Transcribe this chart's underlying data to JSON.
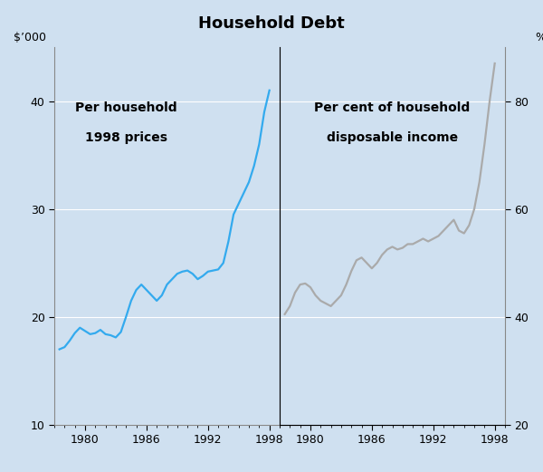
{
  "title": "Household Debt",
  "background_color": "#cfe0f0",
  "plot_bg_color": "#cfe0f0",
  "left_ylabel": "$’000",
  "right_ylabel": "%",
  "left_label1": "Per household",
  "left_label2": "1998 prices",
  "right_label1": "Per cent of household",
  "right_label2": "disposable income",
  "left_ylim": [
    10,
    45
  ],
  "right_ylim": [
    20,
    90
  ],
  "left_yticks": [
    10,
    20,
    30,
    40
  ],
  "right_yticks": [
    20,
    40,
    60,
    80
  ],
  "left_xticks": [
    1980,
    1986,
    1992,
    1998
  ],
  "right_xticks": [
    1980,
    1986,
    1992,
    1998
  ],
  "left_color": "#33aaee",
  "right_color": "#aaaaaa",
  "left_x": [
    1977.5,
    1978.0,
    1978.5,
    1979.0,
    1979.5,
    1980.0,
    1980.5,
    1981.0,
    1981.5,
    1982.0,
    1982.5,
    1983.0,
    1983.5,
    1984.0,
    1984.5,
    1985.0,
    1985.5,
    1986.0,
    1986.5,
    1987.0,
    1987.5,
    1988.0,
    1988.5,
    1989.0,
    1989.5,
    1990.0,
    1990.5,
    1991.0,
    1991.5,
    1992.0,
    1992.5,
    1993.0,
    1993.5,
    1994.0,
    1994.5,
    1995.0,
    1995.5,
    1996.0,
    1996.5,
    1997.0,
    1997.5,
    1998.0
  ],
  "left_y": [
    17.0,
    17.2,
    17.8,
    18.5,
    19.0,
    18.7,
    18.4,
    18.5,
    18.8,
    18.4,
    18.3,
    18.1,
    18.6,
    20.0,
    21.5,
    22.5,
    23.0,
    22.5,
    22.0,
    21.5,
    22.0,
    23.0,
    23.5,
    24.0,
    24.2,
    24.3,
    24.0,
    23.5,
    23.8,
    24.2,
    24.3,
    24.4,
    25.0,
    27.0,
    29.5,
    30.5,
    31.5,
    32.5,
    34.0,
    36.0,
    39.0,
    41.0
  ],
  "right_x": [
    1977.5,
    1978.0,
    1978.5,
    1979.0,
    1979.5,
    1980.0,
    1980.5,
    1981.0,
    1981.5,
    1982.0,
    1982.5,
    1983.0,
    1983.5,
    1984.0,
    1984.5,
    1985.0,
    1985.5,
    1986.0,
    1986.5,
    1987.0,
    1987.5,
    1988.0,
    1988.5,
    1989.0,
    1989.5,
    1990.0,
    1990.5,
    1991.0,
    1991.5,
    1992.0,
    1992.5,
    1993.0,
    1993.5,
    1994.0,
    1994.5,
    1995.0,
    1995.5,
    1996.0,
    1996.5,
    1997.0,
    1997.5,
    1998.0
  ],
  "right_y": [
    40.5,
    42.0,
    44.5,
    46.0,
    46.2,
    45.5,
    44.0,
    43.0,
    42.5,
    42.0,
    43.0,
    44.0,
    46.0,
    48.5,
    50.5,
    51.0,
    50.0,
    49.0,
    50.0,
    51.5,
    52.5,
    53.0,
    52.5,
    52.8,
    53.5,
    53.5,
    54.0,
    54.5,
    54.0,
    54.5,
    55.0,
    56.0,
    57.0,
    58.0,
    56.0,
    55.5,
    57.0,
    60.0,
    65.0,
    72.0,
    80.0,
    87.0
  ],
  "xlim": [
    1977.0,
    1999.0
  ],
  "grid_color": "white",
  "grid_linewidth": 0.8,
  "spine_color": "#888888",
  "tick_labelsize": 9,
  "label_fontsize": 9,
  "title_fontsize": 13,
  "annotation_fontsize": 10
}
